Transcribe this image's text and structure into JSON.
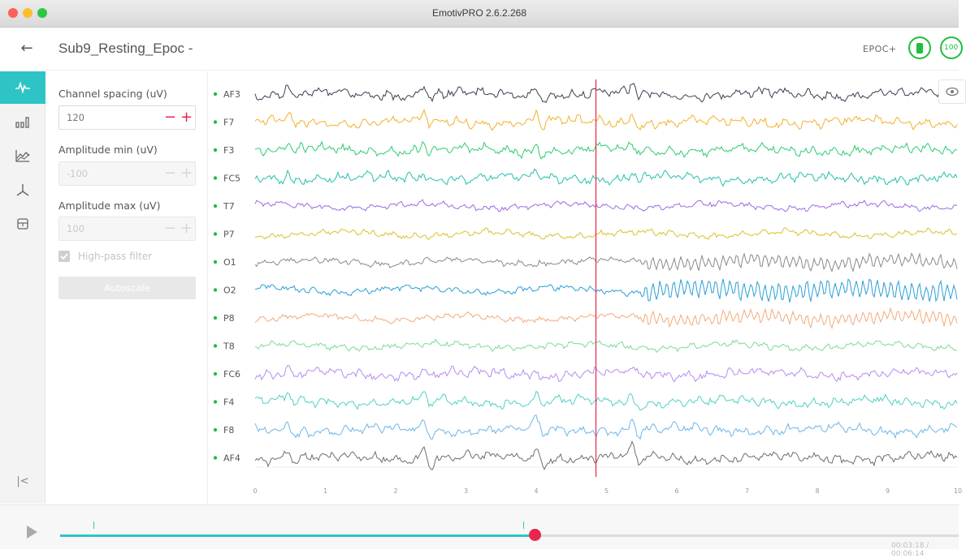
{
  "window": {
    "title": "EmotivPRO 2.6.2.268",
    "traffic_lights": {
      "close": "#fe5f57",
      "minimize": "#febc2e",
      "maximize": "#28c840"
    }
  },
  "header": {
    "back_icon": "arrow-left-icon",
    "record_title": "Sub9_Resting_Epoc -",
    "device": "EPOC+",
    "battery_icon": "battery-icon",
    "contact_quality": "100",
    "status_color": "#1fbf3a"
  },
  "rail": {
    "items": [
      {
        "icon": "waveform-icon",
        "active": true
      },
      {
        "icon": "bar-chart-icon",
        "active": false
      },
      {
        "icon": "line-chart-icon",
        "active": false
      },
      {
        "icon": "motion-axes-icon",
        "active": false
      },
      {
        "icon": "storage-icon",
        "active": false
      }
    ],
    "collapse_label": "|<"
  },
  "settings": {
    "channel_spacing_label": "Channel spacing (uV)",
    "channel_spacing_value": "120",
    "amplitude_min_label": "Amplitude min (uV)",
    "amplitude_min_placeholder": "-100",
    "amplitude_max_label": "Amplitude max (uV)",
    "amplitude_max_placeholder": "100",
    "minus_label": "−",
    "plus_label": "+",
    "high_pass_label": "High-pass filter",
    "high_pass_checked": true,
    "autoscale_label": "Autoscale",
    "accent_color": "#e8264c"
  },
  "chart_data": {
    "type": "line",
    "xlim": [
      0,
      10
    ],
    "x_ticks": [
      "0",
      "1",
      "2",
      "3",
      "4",
      "5",
      "6",
      "7",
      "8",
      "9",
      "10"
    ],
    "cursor_x": 4.85,
    "dot_color": "#1fbf3a",
    "series": [
      {
        "name": "AF3",
        "color": "#3c3f52"
      },
      {
        "name": "F7",
        "color": "#f2b12b"
      },
      {
        "name": "F3",
        "color": "#2ecc71"
      },
      {
        "name": "FC5",
        "color": "#26bfae"
      },
      {
        "name": "T7",
        "color": "#9b6ce0"
      },
      {
        "name": "P7",
        "color": "#dcc12b"
      },
      {
        "name": "O1",
        "color": "#8a8a8a"
      },
      {
        "name": "O2",
        "color": "#2a9fd6"
      },
      {
        "name": "P8",
        "color": "#f2ab7c"
      },
      {
        "name": "T8",
        "color": "#7ed99b"
      },
      {
        "name": "FC6",
        "color": "#b48df0"
      },
      {
        "name": "F4",
        "color": "#4fd1c5"
      },
      {
        "name": "F8",
        "color": "#6cb6e8"
      },
      {
        "name": "AF4",
        "color": "#6e6e6e"
      }
    ]
  },
  "playback": {
    "play_icon": "play-icon",
    "progress_fraction": 0.528,
    "marker_fractions": [
      0.037,
      0.515
    ],
    "time_readout": "00:03:18 / 00:06:14"
  }
}
